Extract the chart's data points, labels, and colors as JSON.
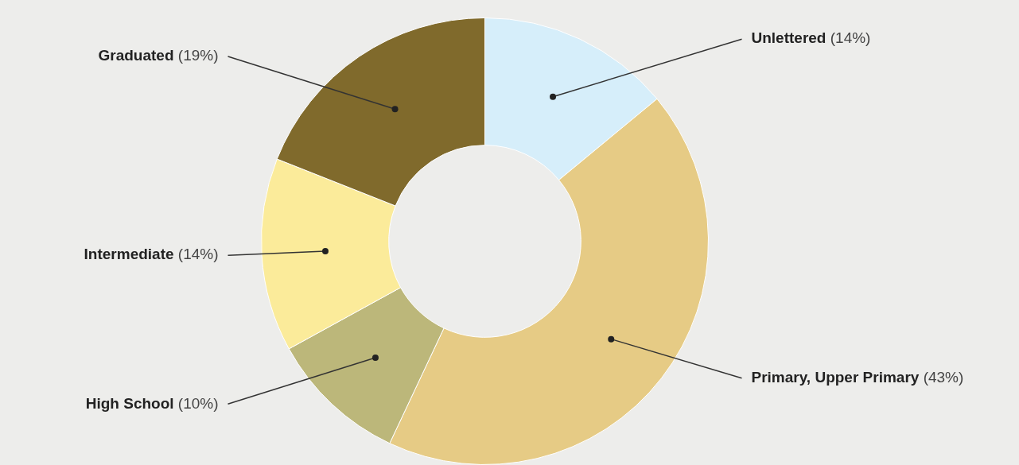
{
  "chart_data": {
    "type": "donut",
    "categories": [
      "Unlettered",
      "Primary, Upper Primary",
      "High School",
      "Intermediate",
      "Graduated"
    ],
    "values": [
      14,
      43,
      10,
      14,
      19
    ],
    "colors": [
      "#d6eefa",
      "#e6cb85",
      "#bcb77a",
      "#fbeb9a",
      "#806a2c"
    ],
    "value_labels": [
      "(14%)",
      "(43%)",
      "(10%)",
      "(14%)",
      "(19%)"
    ],
    "legend": false
  }
}
